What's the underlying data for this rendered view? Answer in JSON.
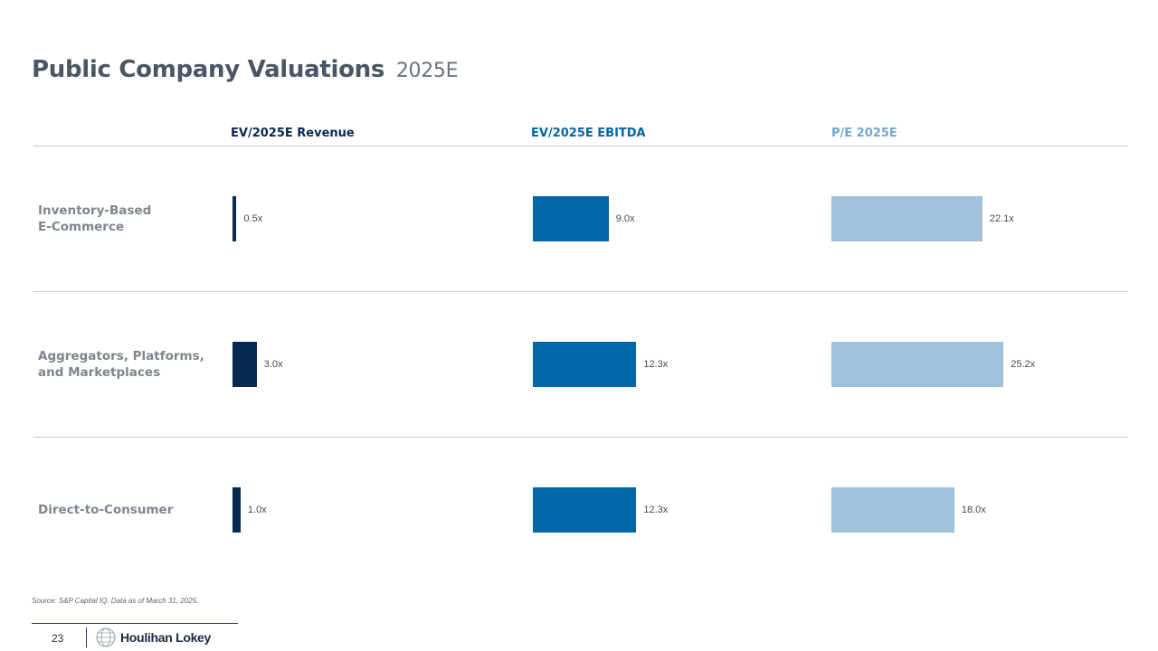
{
  "page": {
    "title": "Public Company Valuations",
    "title_suffix": "2025E",
    "source": "Source: S&P Capital IQ. Data as of March 31, 2025.",
    "page_number": "23",
    "brand": "Houlihan Lokey"
  },
  "colors": {
    "revenue": "#062a52",
    "ebitda": "#0167a8",
    "pe": "#9fc2da"
  },
  "chart_data": {
    "type": "bar",
    "orientation": "horizontal",
    "categories": [
      "Inventory-Based\nE-Commerce",
      "Aggregators, Platforms,\nand Marketplaces",
      "Direct-to-Consumer"
    ],
    "series": [
      {
        "name": "EV/2025E Revenue",
        "values": [
          0.5,
          3.0,
          1.0
        ],
        "labels": [
          "0.5x",
          "3.0x",
          "1.0x"
        ]
      },
      {
        "name": "EV/2025E EBITDA",
        "values": [
          9.0,
          12.3,
          12.3
        ],
        "labels": [
          "9.0x",
          "12.3x",
          "12.3x"
        ]
      },
      {
        "name": "P/E 2025E",
        "values": [
          22.1,
          25.2,
          18.0
        ],
        "labels": [
          "22.1x",
          "25.2x",
          "18.0x"
        ]
      }
    ]
  }
}
